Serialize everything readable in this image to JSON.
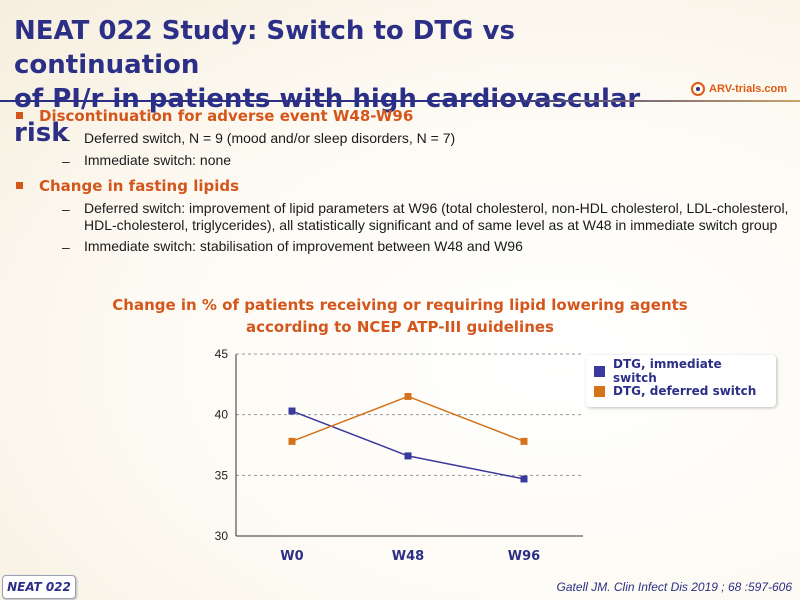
{
  "slide": {
    "title_line1": "NEAT 022 Study: Switch to DTG vs continuation",
    "title_line2": "of PI/r in patients with high cardiovascular risk",
    "logo_text": "ARV-trials.com",
    "footer_badge": "NEAT 022",
    "citation": "Gatell JM. Clin Infect Dis 2019 ; 68 :597-606"
  },
  "bullets": [
    {
      "text": "Discontinuation for adverse event W48-W96",
      "sub": [
        "Deferred switch, N = 9 (mood and/or sleep disorders, N = 7)",
        "Immediate switch: none"
      ]
    },
    {
      "text": "Change in fasting lipids",
      "sub": [
        "Deferred switch: improvement of lipid parameters at W96 (total cholesterol, non-HDL cholesterol, LDL-cholesterol, HDL-cholesterol, triglycerides), all statistically significant and of same level as at W48 in immediate switch group",
        "Immediate switch: stabilisation of improvement between W48 and W96"
      ]
    }
  ],
  "colors": {
    "title": "#2b2f86",
    "accent": "#d4561b",
    "immediate": "#3a3a9e",
    "deferred": "#d4731b"
  },
  "chart_data": {
    "type": "line",
    "title_line1": "Change in % of patients receiving or requiring lipid lowering agents",
    "title_line2": "according to NCEP ATP-III guidelines",
    "categories": [
      "W0",
      "W48",
      "W96"
    ],
    "ylim": [
      30,
      45
    ],
    "yticks": [
      30,
      35,
      40,
      45
    ],
    "grid": true,
    "legend_position": "top-right",
    "series": [
      {
        "name": "DTG, immediate switch",
        "values": [
          40.3,
          36.6,
          34.7
        ]
      },
      {
        "name": "DTG, deferred switch",
        "values": [
          37.8,
          41.5,
          37.8
        ]
      }
    ]
  }
}
